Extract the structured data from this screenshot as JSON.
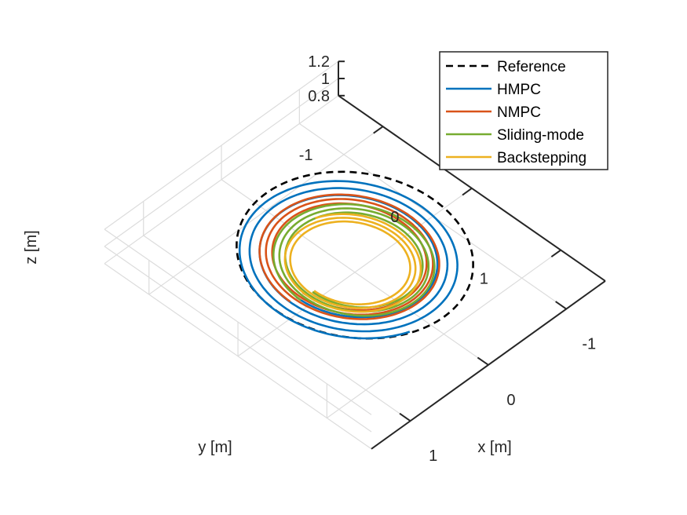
{
  "chart_data": {
    "type": "line",
    "projection": "3d",
    "xlabel": "x [m]",
    "ylabel": "y [m]",
    "zlabel": "z [m]",
    "xlim": [
      -1.5,
      1.5
    ],
    "ylim": [
      -1.5,
      1.5
    ],
    "zlim": [
      0.8,
      1.2
    ],
    "xticks": [
      -1,
      0,
      1
    ],
    "yticks": [
      -1,
      0,
      1
    ],
    "zticks": [
      0.8,
      1,
      1.2
    ],
    "xtick_labels": [
      "-1",
      "0",
      "1"
    ],
    "ytick_labels": [
      "-1",
      "0",
      "1"
    ],
    "ztick_labels": [
      "0.8",
      "1",
      "1.2"
    ],
    "grid": true,
    "legend_position": "top-right",
    "series": [
      {
        "name": "Reference",
        "color": "#000000",
        "style": "dashed",
        "spiral": {
          "cx": 0.0,
          "cy": 0.0,
          "r_start": 1.0,
          "r_end": 1.0,
          "z": 1.0,
          "turns": 1
        }
      },
      {
        "name": "HMPC",
        "color": "#0072BD",
        "style": "solid",
        "spiral": {
          "cx": 0.05,
          "cy": 0.0,
          "r_start": 0.7,
          "r_end": 0.97,
          "z": 1.0,
          "turns": 3.2
        }
      },
      {
        "name": "NMPC",
        "color": "#D95319",
        "style": "solid",
        "spiral": {
          "cx": 0.05,
          "cy": 0.0,
          "r_start": 0.62,
          "r_end": 0.78,
          "z": 1.0,
          "turns": 3.0
        }
      },
      {
        "name": "Sliding-mode",
        "color": "#77AC30",
        "style": "solid",
        "spiral": {
          "cx": 0.05,
          "cy": 0.05,
          "r_start": 0.55,
          "r_end": 0.7,
          "z": 1.0,
          "turns": 3.0
        }
      },
      {
        "name": "Backstepping",
        "color": "#EDB120",
        "style": "solid",
        "spiral": {
          "cx": 0.1,
          "cy": 0.05,
          "r_start": 0.48,
          "r_end": 0.6,
          "z": 1.0,
          "turns": 2.7
        }
      }
    ]
  }
}
